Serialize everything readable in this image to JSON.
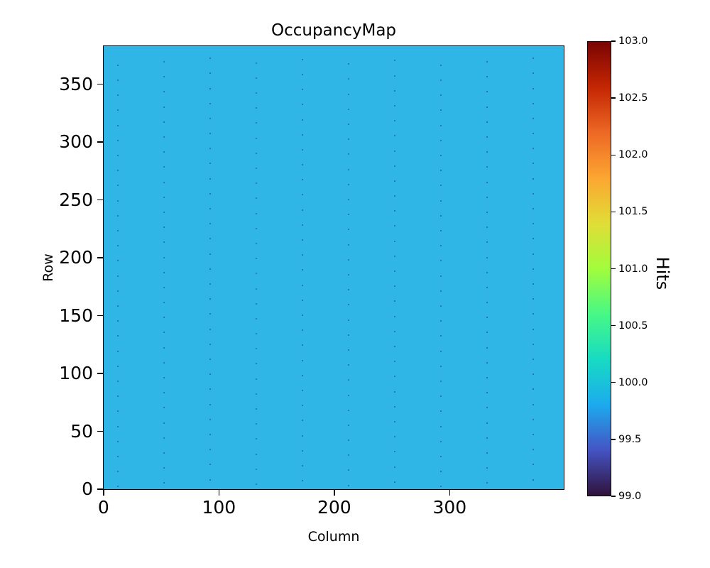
{
  "chart_data": {
    "type": "heatmap",
    "title": "OccupancyMap",
    "xlabel": "Column",
    "ylabel": "Row",
    "colorbar_label": "Hits",
    "xlim": [
      0,
      400
    ],
    "ylim": [
      0,
      384
    ],
    "xticks": [
      0,
      100,
      200,
      300
    ],
    "yticks": [
      0,
      50,
      100,
      150,
      200,
      250,
      300,
      350
    ],
    "colorbar_range": [
      99.0,
      103.0
    ],
    "colorbar_ticks": [
      {
        "value": 99.0,
        "label": "99.0"
      },
      {
        "value": 99.5,
        "label": "99.5"
      },
      {
        "value": 100.0,
        "label": "100.0"
      },
      {
        "value": 100.5,
        "label": "100.5"
      },
      {
        "value": 101.0,
        "label": "101.0"
      },
      {
        "value": 101.5,
        "label": "101.5"
      },
      {
        "value": 102.0,
        "label": "102.0"
      },
      {
        "value": 102.5,
        "label": "102.5"
      },
      {
        "value": 103.0,
        "label": "103.0"
      }
    ],
    "uniform_value": 100,
    "background_color": "#2fb6e6",
    "low_pixels": {
      "comment_visible_pattern": "sparse darker dots in vertical stripes",
      "columns": [
        12,
        52,
        92,
        132,
        172,
        212,
        252,
        292,
        332,
        372
      ],
      "row_start": 6,
      "row_step": 13,
      "row_end": 374,
      "color": "#1f5068"
    },
    "colormap": {
      "name": "turbo",
      "stops": [
        {
          "t": 0.0,
          "color": "#30123b"
        },
        {
          "t": 0.1,
          "color": "#4454c4"
        },
        {
          "t": 0.2,
          "color": "#1cabee"
        },
        {
          "t": 0.3,
          "color": "#17dbc2"
        },
        {
          "t": 0.4,
          "color": "#47f885"
        },
        {
          "t": 0.5,
          "color": "#a2fc3c"
        },
        {
          "t": 0.6,
          "color": "#e1dd37"
        },
        {
          "t": 0.7,
          "color": "#fca631"
        },
        {
          "t": 0.8,
          "color": "#ed6825"
        },
        {
          "t": 0.9,
          "color": "#c42603"
        },
        {
          "t": 1.0,
          "color": "#7a0403"
        }
      ]
    },
    "legend": "none",
    "grid": false
  }
}
